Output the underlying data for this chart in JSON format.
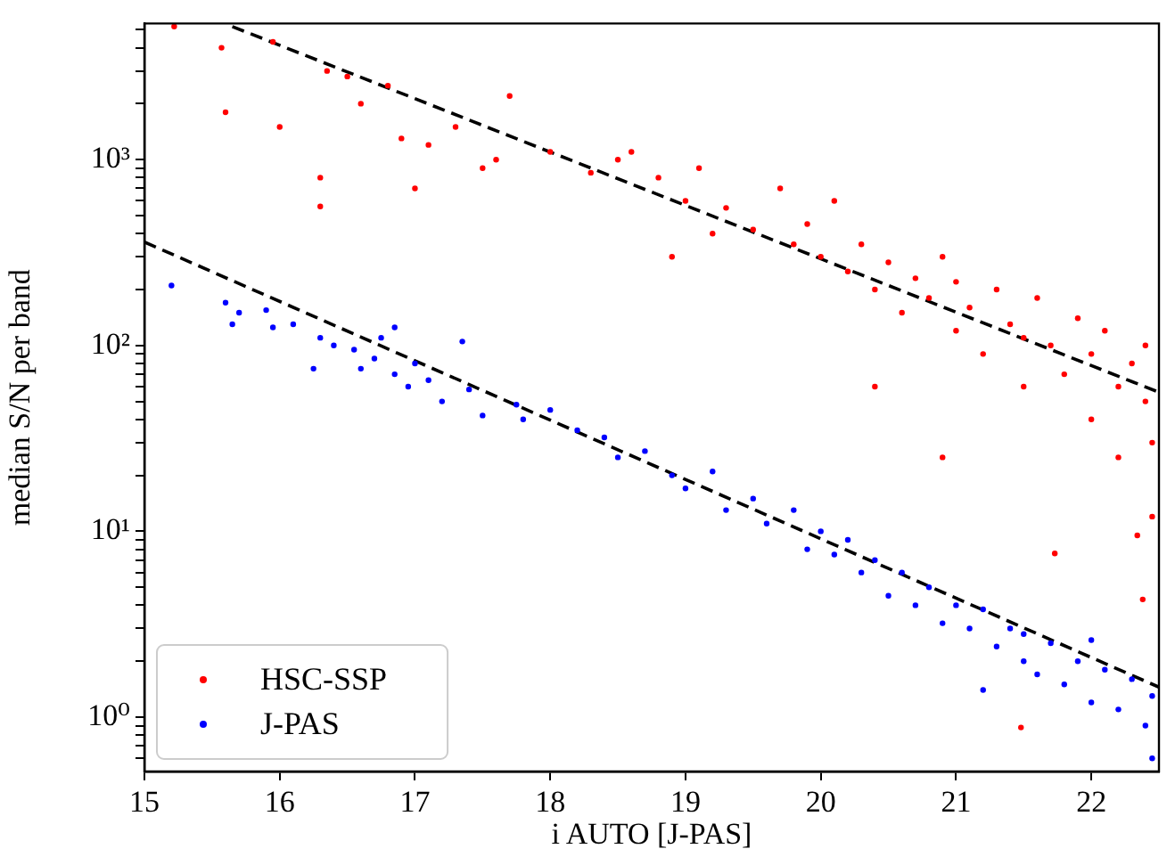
{
  "chart_data": {
    "type": "scatter",
    "xlabel": "i AUTO [J-PAS]",
    "ylabel": "median S/N per band",
    "log": "y",
    "legend": "bottom left",
    "xlim": [
      15,
      22.5
    ],
    "xticks": [
      15,
      16,
      17,
      18,
      19,
      20,
      21,
      22
    ],
    "ylim": [
      0.51,
      5400
    ],
    "yticks": [
      {
        "value": 0.6,
        "label": null
      },
      {
        "value": 0.7,
        "label": null
      },
      {
        "value": 0.8,
        "label": null
      },
      {
        "value": 0.9,
        "label": null
      },
      {
        "value": 1,
        "label": "10⁰"
      },
      {
        "value": 2,
        "label": null
      },
      {
        "value": 3,
        "label": null
      },
      {
        "value": 4,
        "label": null
      },
      {
        "value": 5,
        "label": null
      },
      {
        "value": 6,
        "label": null
      },
      {
        "value": 7,
        "label": null
      },
      {
        "value": 8,
        "label": null
      },
      {
        "value": 9,
        "label": null
      },
      {
        "value": 10,
        "label": "10¹"
      },
      {
        "value": 20,
        "label": null
      },
      {
        "value": 30,
        "label": null
      },
      {
        "value": 40,
        "label": null
      },
      {
        "value": 50,
        "label": null
      },
      {
        "value": 60,
        "label": null
      },
      {
        "value": 70,
        "label": null
      },
      {
        "value": 80,
        "label": null
      },
      {
        "value": 90,
        "label": null
      },
      {
        "value": 100,
        "label": "10²"
      },
      {
        "value": 200,
        "label": null
      },
      {
        "value": 300,
        "label": null
      },
      {
        "value": 400,
        "label": null
      },
      {
        "value": 500,
        "label": null
      },
      {
        "value": 600,
        "label": null
      },
      {
        "value": 700,
        "label": null
      },
      {
        "value": 800,
        "label": null
      },
      {
        "value": 900,
        "label": null
      },
      {
        "value": 1000,
        "label": "10³"
      },
      {
        "value": 2000,
        "label": null
      },
      {
        "value": 3000,
        "label": null
      },
      {
        "value": 4000,
        "label": null
      },
      {
        "value": 5000,
        "label": null
      }
    ],
    "series": [
      {
        "name": "HSC-SSP",
        "marker": "circle",
        "color": "#ff0000",
        "x": [
          15.22,
          15.57,
          15.6,
          15.95,
          16.0,
          16.3,
          16.3,
          16.35,
          16.5,
          16.6,
          16.8,
          16.9,
          17.0,
          17.1,
          17.3,
          17.5,
          17.7,
          17.6,
          18.0,
          18.3,
          18.5,
          18.6,
          18.8,
          18.9,
          19.0,
          19.1,
          19.2,
          19.3,
          19.5,
          19.7,
          19.8,
          19.9,
          20.0,
          20.1,
          20.2,
          20.3,
          20.4,
          20.5,
          20.6,
          20.7,
          20.8,
          20.9,
          21.0,
          21.0,
          21.1,
          21.2,
          21.3,
          21.4,
          21.5,
          21.5,
          21.6,
          21.7,
          21.8,
          21.9,
          22.0,
          22.0,
          22.1,
          22.2,
          22.2,
          22.3,
          22.4,
          22.4,
          22.45,
          22.45,
          21.48,
          20.9,
          20.4,
          21.73,
          22.34,
          22.38
        ],
        "values": [
          5200,
          4000,
          1800,
          4300,
          1500,
          560,
          800,
          3000,
          2800,
          2000,
          2500,
          1300,
          700,
          1200,
          1500,
          900,
          2200,
          1000,
          1100,
          850,
          1000,
          1100,
          800,
          300,
          600,
          900,
          400,
          550,
          420,
          700,
          350,
          450,
          300,
          600,
          250,
          350,
          200,
          280,
          150,
          230,
          180,
          300,
          220,
          120,
          160,
          90,
          200,
          130,
          110,
          60,
          180,
          100,
          70,
          140,
          90,
          40,
          120,
          60,
          25,
          80,
          50,
          100,
          30,
          12,
          0.88,
          25,
          60,
          7.6,
          9.5,
          4.3
        ]
      },
      {
        "name": "J-PAS",
        "marker": "circle",
        "color": "#0000ff",
        "x": [
          15.2,
          15.6,
          15.65,
          15.7,
          15.9,
          15.95,
          16.1,
          16.25,
          16.3,
          16.4,
          16.55,
          16.6,
          16.7,
          16.75,
          16.85,
          16.85,
          16.95,
          17.0,
          17.1,
          17.2,
          17.35,
          17.4,
          17.5,
          17.75,
          17.8,
          18.0,
          18.2,
          18.4,
          18.5,
          18.7,
          18.9,
          19.0,
          19.2,
          19.3,
          19.5,
          19.6,
          19.8,
          19.9,
          20.0,
          20.1,
          20.2,
          20.3,
          20.4,
          20.5,
          20.6,
          20.7,
          20.8,
          20.9,
          21.0,
          21.1,
          21.2,
          21.3,
          21.4,
          21.5,
          21.5,
          21.6,
          21.7,
          21.8,
          21.9,
          22.0,
          22.1,
          22.2,
          22.3,
          22.4,
          22.45,
          22.45,
          22.0,
          21.2
        ],
        "values": [
          210,
          170,
          130,
          150,
          155,
          125,
          130,
          75,
          110,
          100,
          95,
          75,
          85,
          110,
          125,
          70,
          60,
          80,
          65,
          50,
          105,
          58,
          42,
          48,
          40,
          45,
          35,
          32,
          25,
          27,
          20,
          17,
          21,
          13,
          15,
          11,
          13,
          8,
          10,
          7.5,
          9,
          6,
          7,
          4.5,
          6,
          4,
          5,
          3.2,
          4,
          3,
          3.8,
          2.4,
          3,
          2,
          2.8,
          1.7,
          2.5,
          1.5,
          2,
          1.2,
          1.8,
          1.1,
          1.6,
          0.9,
          1.3,
          0.6,
          2.6,
          1.4
        ]
      },
      {
        "type": "line",
        "marker": "none",
        "line_style": "dashed",
        "color": "#000000",
        "x": [
          15.65,
          22.5
        ],
        "values": [
          5200,
          56
        ]
      },
      {
        "type": "line",
        "marker": "none",
        "line_style": "dashed",
        "color": "#000000",
        "x": [
          15,
          22.5
        ],
        "values": [
          360,
          1.45
        ]
      }
    ]
  }
}
